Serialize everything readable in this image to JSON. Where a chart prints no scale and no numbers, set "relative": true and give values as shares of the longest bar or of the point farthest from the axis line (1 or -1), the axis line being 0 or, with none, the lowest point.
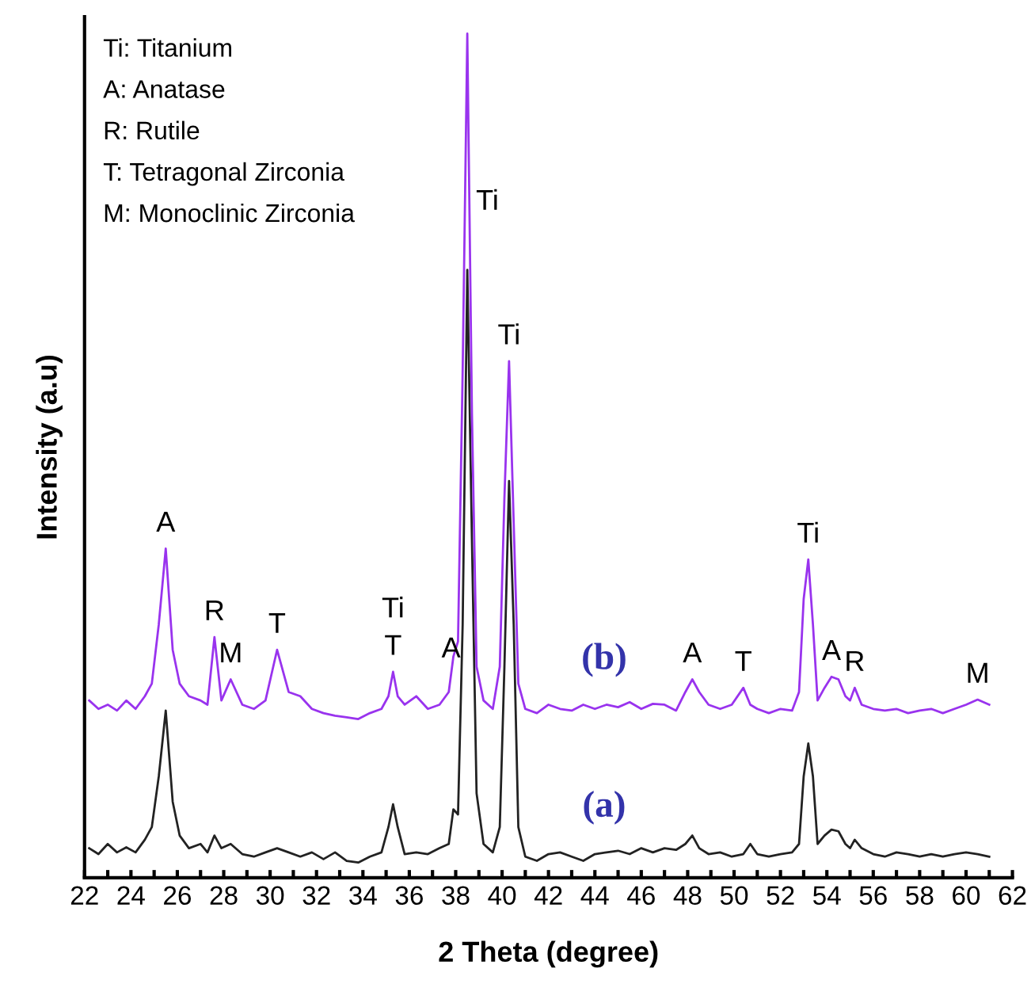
{
  "chart_data": {
    "type": "line",
    "xlabel": "2 Theta (degree)",
    "ylabel": "Intensity (a.u)",
    "relative": true,
    "x": [
      22.2,
      22.6,
      23.0,
      23.4,
      23.8,
      24.2,
      24.6,
      24.9,
      25.2,
      25.5,
      25.8,
      26.1,
      26.5,
      27.0,
      27.3,
      27.6,
      27.9,
      28.3,
      28.8,
      29.3,
      29.8,
      30.3,
      30.8,
      31.3,
      31.8,
      32.3,
      32.8,
      33.3,
      33.8,
      34.3,
      34.8,
      35.1,
      35.3,
      35.5,
      35.8,
      36.3,
      36.8,
      37.3,
      37.7,
      37.9,
      38.1,
      38.3,
      38.5,
      38.7,
      38.9,
      39.2,
      39.6,
      39.9,
      40.1,
      40.3,
      40.5,
      40.7,
      41.0,
      41.5,
      42.0,
      42.5,
      43.0,
      43.5,
      44.0,
      44.5,
      45.0,
      45.5,
      46.0,
      46.5,
      47.0,
      47.5,
      47.9,
      48.2,
      48.5,
      48.9,
      49.4,
      49.9,
      50.4,
      50.7,
      51.0,
      51.5,
      52.0,
      52.5,
      52.8,
      53.0,
      53.2,
      53.4,
      53.6,
      53.9,
      54.2,
      54.5,
      54.8,
      55.0,
      55.2,
      55.5,
      56.0,
      56.5,
      57.0,
      57.5,
      58.0,
      58.5,
      59.0,
      59.5,
      60.0,
      60.5,
      61.0
    ],
    "series": [
      {
        "name": "(a)",
        "color": "#222222",
        "values": [
          0.035,
          0.028,
          0.04,
          0.03,
          0.036,
          0.03,
          0.045,
          0.06,
          0.12,
          0.198,
          0.09,
          0.05,
          0.035,
          0.04,
          0.03,
          0.05,
          0.035,
          0.04,
          0.028,
          0.025,
          0.03,
          0.035,
          0.03,
          0.025,
          0.03,
          0.022,
          0.03,
          0.02,
          0.018,
          0.025,
          0.03,
          0.06,
          0.087,
          0.06,
          0.028,
          0.03,
          0.028,
          0.035,
          0.04,
          0.081,
          0.075,
          0.3,
          0.72,
          0.4,
          0.1,
          0.04,
          0.03,
          0.06,
          0.25,
          0.47,
          0.3,
          0.06,
          0.025,
          0.02,
          0.028,
          0.03,
          0.025,
          0.02,
          0.028,
          0.03,
          0.032,
          0.028,
          0.035,
          0.03,
          0.035,
          0.033,
          0.04,
          0.05,
          0.035,
          0.028,
          0.03,
          0.025,
          0.028,
          0.04,
          0.028,
          0.025,
          0.028,
          0.03,
          0.04,
          0.12,
          0.159,
          0.12,
          0.04,
          0.05,
          0.057,
          0.055,
          0.04,
          0.035,
          0.045,
          0.035,
          0.028,
          0.025,
          0.03,
          0.028,
          0.025,
          0.028,
          0.025,
          0.028,
          0.03,
          0.028,
          0.025
        ]
      },
      {
        "name": "(b)",
        "color": "#9933ee",
        "values": [
          0.21,
          0.2,
          0.205,
          0.198,
          0.21,
          0.2,
          0.215,
          0.23,
          0.3,
          0.39,
          0.27,
          0.23,
          0.215,
          0.21,
          0.205,
          0.285,
          0.21,
          0.235,
          0.205,
          0.2,
          0.21,
          0.27,
          0.22,
          0.215,
          0.2,
          0.195,
          0.192,
          0.19,
          0.188,
          0.195,
          0.2,
          0.215,
          0.244,
          0.215,
          0.205,
          0.215,
          0.2,
          0.205,
          0.22,
          0.262,
          0.28,
          0.6,
          1.0,
          0.55,
          0.25,
          0.21,
          0.2,
          0.25,
          0.45,
          0.612,
          0.42,
          0.23,
          0.2,
          0.195,
          0.205,
          0.2,
          0.198,
          0.205,
          0.2,
          0.205,
          0.202,
          0.208,
          0.2,
          0.206,
          0.205,
          0.198,
          0.22,
          0.235,
          0.22,
          0.205,
          0.2,
          0.205,
          0.225,
          0.205,
          0.2,
          0.195,
          0.2,
          0.198,
          0.22,
          0.33,
          0.377,
          0.3,
          0.21,
          0.225,
          0.238,
          0.235,
          0.215,
          0.21,
          0.225,
          0.205,
          0.2,
          0.198,
          0.2,
          0.195,
          0.198,
          0.2,
          0.195,
          0.2,
          0.205,
          0.211,
          0.205
        ]
      }
    ],
    "xlim": [
      22,
      62
    ],
    "xticks": [
      22,
      {
        "value": 23,
        "label": null
      },
      24,
      {
        "value": 25,
        "label": null
      },
      26,
      {
        "value": 27,
        "label": null
      },
      28,
      {
        "value": 29,
        "label": null
      },
      30,
      {
        "value": 31,
        "label": null
      },
      32,
      {
        "value": 33,
        "label": null
      },
      34,
      {
        "value": 35,
        "label": null
      },
      36,
      {
        "value": 37,
        "label": null
      },
      38,
      {
        "value": 39,
        "label": null
      },
      40,
      {
        "value": 41,
        "label": null
      },
      42,
      {
        "value": 43,
        "label": null
      },
      44,
      {
        "value": 45,
        "label": null
      },
      46,
      {
        "value": 47,
        "label": null
      },
      48,
      {
        "value": 49,
        "label": null
      },
      50,
      {
        "value": 51,
        "label": null
      },
      52,
      {
        "value": 53,
        "label": null
      },
      54,
      {
        "value": 55,
        "label": null
      },
      56,
      {
        "value": 57,
        "label": null
      },
      58,
      {
        "value": 59,
        "label": null
      },
      60,
      {
        "value": 61,
        "label": null
      },
      62
    ],
    "grid": false,
    "legend": false,
    "marker": "none",
    "line_style": "solid",
    "annotations": [
      "Ti: Titanium",
      "A: Anatase",
      "R: Rutile",
      "T: Tetragonal Zirconia",
      "M: Monoclinic Zirconia",
      {
        "text": "A",
        "x": 25.5,
        "y": 0.39
      },
      {
        "text": "R",
        "x": 27.6,
        "y": 0.285
      },
      {
        "text": "M",
        "x": 28.3,
        "y": 0.235
      },
      {
        "text": "T",
        "x": 30.3,
        "y": 0.27
      },
      {
        "text": "Ti",
        "x": 35.3,
        "y": 0.244
      },
      {
        "text": "T",
        "x": 35.3,
        "y": 0.244
      },
      {
        "text": "A",
        "x": 37.8,
        "y": 0.241
      },
      {
        "text": "Ti",
        "x": 38.59,
        "y": 0.8
      },
      {
        "text": "Ti",
        "x": 40.3,
        "y": 0.612
      },
      {
        "text": "A",
        "x": 48.2,
        "y": 0.235
      },
      {
        "text": "T",
        "x": 50.4,
        "y": 0.225
      },
      {
        "text": "Ti",
        "x": 53.2,
        "y": 0.377
      },
      {
        "text": "A",
        "x": 54.2,
        "y": 0.238
      },
      {
        "text": "R",
        "x": 55.2,
        "y": 0.225
      },
      {
        "text": "M",
        "x": 60.5,
        "y": 0.211
      }
    ]
  }
}
